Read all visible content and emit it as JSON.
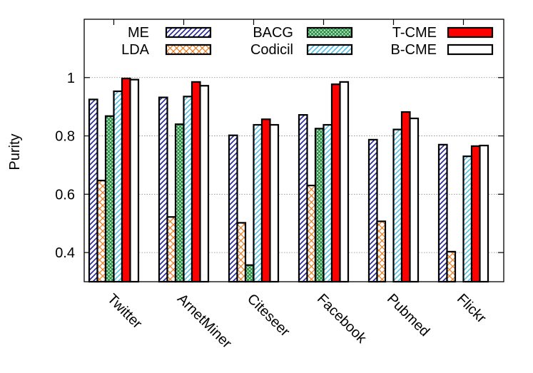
{
  "chart_data": {
    "type": "bar",
    "title": "",
    "xlabel": "",
    "ylabel": "Purity",
    "ylim": [
      0.3,
      1.2
    ],
    "yticks": [
      0.4,
      0.6,
      0.8,
      1
    ],
    "ytick_labels": [
      "0.4",
      "0.6",
      "0.8",
      "1"
    ],
    "grid": true,
    "legend_position": "top",
    "categories": [
      "Twitter",
      "ArnetMiner",
      "Citeseer",
      "Facebook",
      "Pubmed",
      "Flickr"
    ],
    "series": [
      {
        "name": "ME",
        "pattern": "diag-blue",
        "values": [
          0.925,
          0.932,
          0.802,
          0.872,
          0.787,
          0.77
        ]
      },
      {
        "name": "LDA",
        "pattern": "cross-orange",
        "values": [
          0.647,
          0.522,
          0.502,
          0.63,
          0.507,
          0.403
        ]
      },
      {
        "name": "BACG",
        "pattern": "mesh-green",
        "values": [
          0.868,
          0.84,
          0.357,
          0.825,
          null,
          null
        ]
      },
      {
        "name": "Codicil",
        "pattern": "diag-cyan",
        "values": [
          0.953,
          0.935,
          0.838,
          0.838,
          0.822,
          0.73
        ]
      },
      {
        "name": "T-CME",
        "pattern": "solid-red",
        "values": [
          0.997,
          0.985,
          0.857,
          0.977,
          0.882,
          0.765
        ]
      },
      {
        "name": "B-CME",
        "pattern": "solid-white",
        "values": [
          0.993,
          0.972,
          0.838,
          0.985,
          0.86,
          0.767
        ]
      }
    ],
    "colors": {
      "me": "#1f1f9e",
      "lda": "#e87b1e",
      "bacg": "#1e8a3c",
      "codicil": "#4fc0e0",
      "tcme": "#ff0000",
      "bcme": "#ffffff",
      "grid": "#888888"
    }
  }
}
